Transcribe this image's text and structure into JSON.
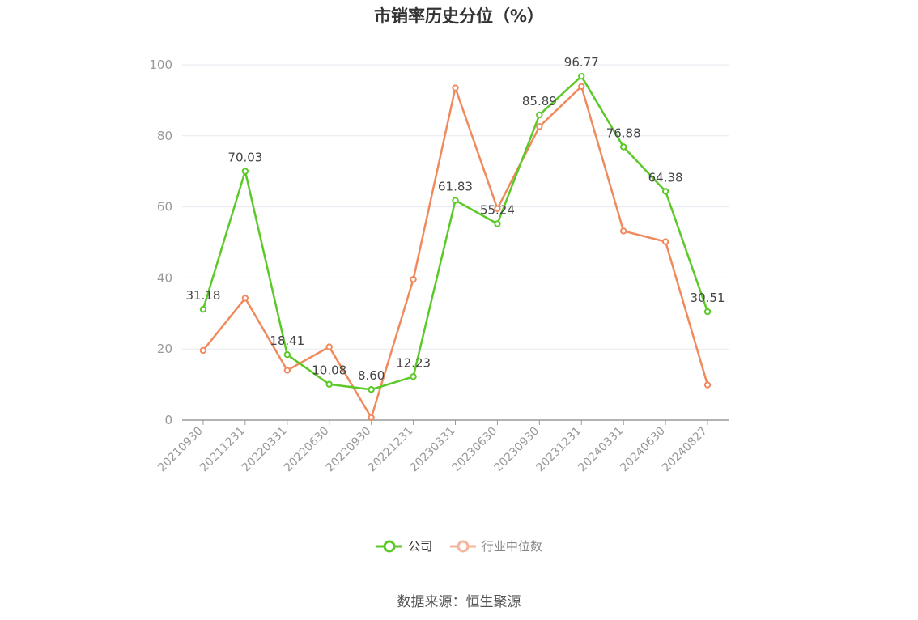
{
  "title": "市销率历史分位（%）",
  "source_label": "数据来源：恒生聚源",
  "colors": {
    "company": "#5cc928",
    "industry": "#f08a5d",
    "industry_legend": "#f6b59b",
    "grid": "#e6e9f0",
    "axis": "#999999"
  },
  "chart_data": {
    "type": "line",
    "title": "市销率历史分位（%）",
    "xlabel": "",
    "ylabel": "",
    "ylim": [
      0,
      100
    ],
    "yticks": [
      0,
      20,
      40,
      60,
      80,
      100
    ],
    "grid": true,
    "legend_position": "bottom",
    "x": [
      "20210930",
      "20211231",
      "20220331",
      "20220630",
      "20220930",
      "20221231",
      "20230331",
      "20230630",
      "20230930",
      "20231231",
      "20240331",
      "20240630",
      "20240827"
    ],
    "series": [
      {
        "name": "公司",
        "values": [
          31.18,
          70.03,
          18.41,
          10.08,
          8.6,
          12.23,
          61.83,
          55.24,
          85.89,
          96.77,
          76.88,
          64.38,
          30.51
        ],
        "labels": [
          "31.18",
          "70.03",
          "18.41",
          "10.08",
          "8.60",
          "12.23",
          "61.83",
          "55.24",
          "85.89",
          "96.77",
          "76.88",
          "64.38",
          "30.51"
        ]
      },
      {
        "name": "行业中位数",
        "values": [
          19.6,
          34.3,
          14.0,
          20.6,
          0.7,
          39.6,
          93.5,
          59.5,
          82.6,
          93.9,
          53.2,
          50.2,
          9.9
        ]
      }
    ]
  }
}
